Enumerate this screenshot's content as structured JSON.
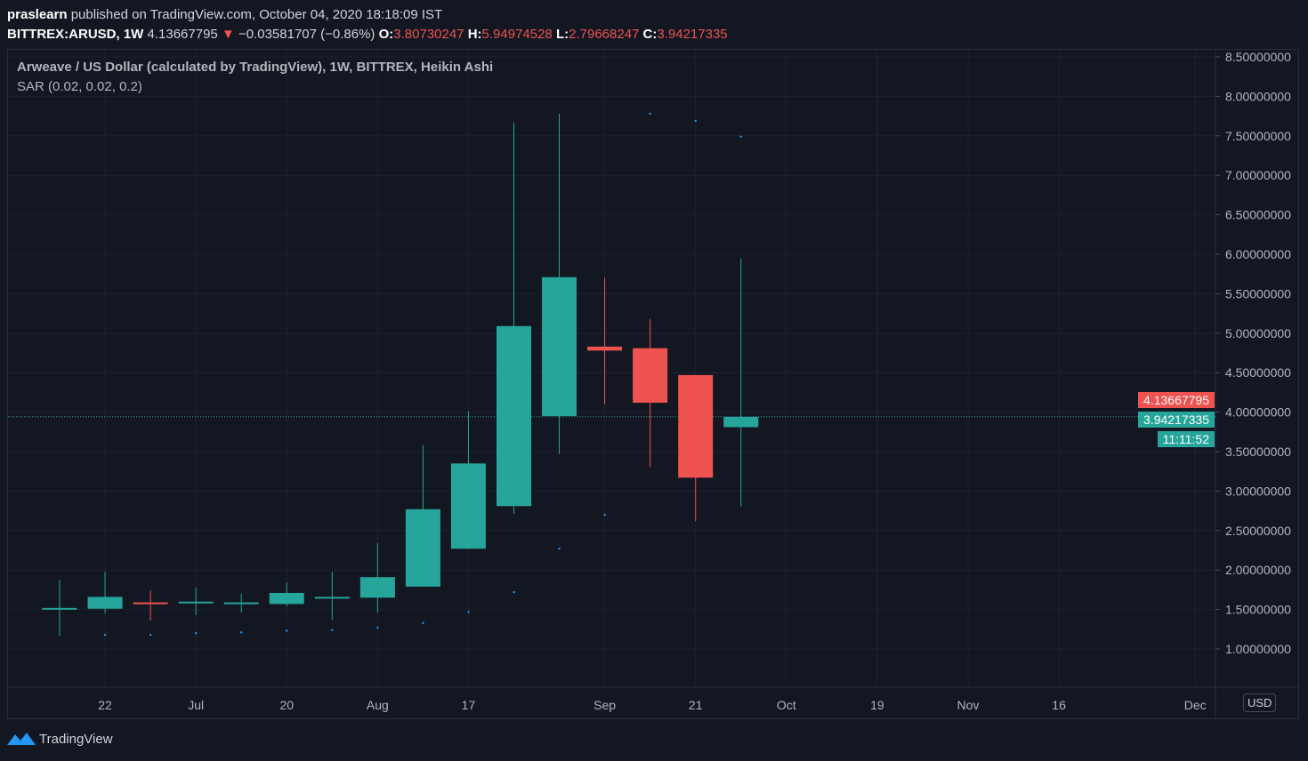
{
  "header": {
    "author": "praslearn",
    "published": "published on TradingView.com, October 04, 2020 18:18:09 IST",
    "symbol": "BITTREX:ARUSD, 1W",
    "last": "4.13667795",
    "change": "−0.03581707 (−0.86%)",
    "o_label": "O:",
    "o": "3.80730247",
    "h_label": "H:",
    "h": "5.94974528",
    "l_label": "L:",
    "l": "2.79668247",
    "c_label": "C:",
    "c": "3.94217335"
  },
  "legend": {
    "title": "Arweave / US Dollar (calculated by TradingView), 1W, BITTREX, Heikin Ashi",
    "indicator": "SAR (0.02, 0.02, 0.2)"
  },
  "currency": "USD",
  "badges": {
    "last": "4.13667795",
    "close": "3.94217335",
    "countdown": "11:11:52"
  },
  "footer": {
    "brand": "TradingView"
  },
  "colors": {
    "up": "#26a69a",
    "down": "#ef5350",
    "sar": "#2196f3"
  },
  "chart_data": {
    "type": "candlestick",
    "y_ticks": [
      "1.00000000",
      "1.50000000",
      "2.00000000",
      "2.50000000",
      "3.00000000",
      "3.50000000",
      "4.00000000",
      "4.50000000",
      "5.00000000",
      "5.50000000",
      "6.00000000",
      "6.50000000",
      "7.00000000",
      "7.50000000",
      "8.00000000",
      "8.50000000"
    ],
    "ylim": [
      0.5,
      8.6
    ],
    "x_ticks": [
      {
        "label": "22",
        "bar": 1
      },
      {
        "label": "Jul",
        "bar": 3
      },
      {
        "label": "20",
        "bar": 5
      },
      {
        "label": "Aug",
        "bar": 7
      },
      {
        "label": "17",
        "bar": 9
      },
      {
        "label": "Sep",
        "bar": 12
      },
      {
        "label": "21",
        "bar": 14
      },
      {
        "label": "Oct",
        "bar": 16
      },
      {
        "label": "19",
        "bar": 18
      },
      {
        "label": "Nov",
        "bar": 20
      },
      {
        "label": "16",
        "bar": 22
      },
      {
        "label": "Dec",
        "bar": 25
      }
    ],
    "candles": [
      {
        "o": 1.51,
        "h": 1.88,
        "l": 1.17,
        "c": 1.52
      },
      {
        "o": 1.51,
        "h": 1.98,
        "l": 1.45,
        "c": 1.66
      },
      {
        "o": 1.59,
        "h": 1.74,
        "l": 1.36,
        "c": 1.57
      },
      {
        "o": 1.58,
        "h": 1.78,
        "l": 1.43,
        "c": 1.6
      },
      {
        "o": 1.58,
        "h": 1.7,
        "l": 1.46,
        "c": 1.59
      },
      {
        "o": 1.57,
        "h": 1.84,
        "l": 1.54,
        "c": 1.71
      },
      {
        "o": 1.65,
        "h": 1.98,
        "l": 1.37,
        "c": 1.66
      },
      {
        "o": 1.65,
        "h": 2.34,
        "l": 1.46,
        "c": 1.91
      },
      {
        "o": 1.79,
        "h": 3.58,
        "l": 1.79,
        "c": 2.77
      },
      {
        "o": 2.27,
        "h": 4.01,
        "l": 2.27,
        "c": 3.35
      },
      {
        "o": 2.81,
        "h": 7.67,
        "l": 2.71,
        "c": 5.09
      },
      {
        "o": 3.95,
        "h": 7.78,
        "l": 3.47,
        "c": 5.71
      },
      {
        "o": 4.83,
        "h": 5.7,
        "l": 4.1,
        "c": 4.78
      },
      {
        "o": 4.81,
        "h": 5.18,
        "l": 3.3,
        "c": 4.12
      },
      {
        "o": 4.47,
        "h": 4.47,
        "l": 2.62,
        "c": 3.17
      },
      {
        "o": 3.81,
        "h": 5.95,
        "l": 2.8,
        "c": 3.94
      }
    ],
    "sar": [
      null,
      1.18,
      1.18,
      1.2,
      1.21,
      1.23,
      1.24,
      1.27,
      1.33,
      1.47,
      1.72,
      2.27,
      2.7,
      7.78,
      7.69,
      7.49
    ],
    "last_price": 3.94217335
  }
}
